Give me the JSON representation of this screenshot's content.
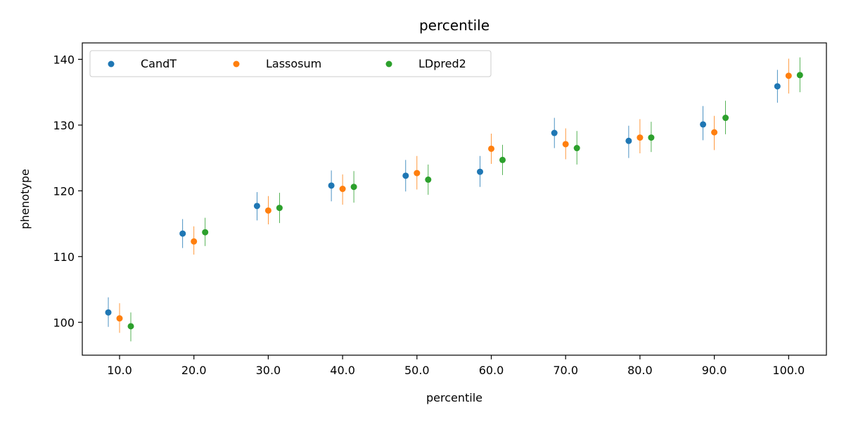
{
  "chart_data": {
    "type": "scatter",
    "title": "percentile",
    "xlabel": "percentile",
    "ylabel": "phenotype",
    "categories": [
      "10.0",
      "20.0",
      "30.0",
      "40.0",
      "50.0",
      "60.0",
      "70.0",
      "80.0",
      "90.0",
      "100.0"
    ],
    "ylim": [
      95,
      142.5
    ],
    "yticks": [
      100,
      110,
      120,
      130,
      140
    ],
    "grid": false,
    "legend": {
      "placement": "top-left",
      "columns": 3
    },
    "series": [
      {
        "name": "CandT",
        "color": "#1f77b4",
        "values": [
          101.5,
          113.5,
          117.7,
          120.8,
          122.3,
          122.9,
          128.8,
          127.6,
          130.1,
          135.9
        ],
        "err_low": [
          99.3,
          111.3,
          115.5,
          118.4,
          119.9,
          120.6,
          126.5,
          125.0,
          127.7,
          133.4
        ],
        "err_high": [
          103.8,
          115.7,
          119.8,
          123.1,
          124.7,
          125.3,
          131.1,
          129.9,
          132.9,
          138.4
        ]
      },
      {
        "name": "Lassosum",
        "color": "#ff7f0e",
        "values": [
          100.6,
          112.3,
          117.0,
          120.3,
          122.7,
          126.4,
          127.1,
          128.1,
          128.9,
          137.5
        ],
        "err_low": [
          98.4,
          110.3,
          114.9,
          117.9,
          120.2,
          124.1,
          124.8,
          125.7,
          126.2,
          134.8
        ],
        "err_high": [
          102.9,
          114.6,
          119.2,
          122.5,
          125.3,
          128.7,
          129.5,
          130.9,
          131.4,
          140.1
        ]
      },
      {
        "name": "LDpred2",
        "color": "#2ca02c",
        "values": [
          99.4,
          113.7,
          117.4,
          120.6,
          121.7,
          124.7,
          126.5,
          128.1,
          131.1,
          137.6
        ],
        "err_low": [
          97.1,
          111.6,
          115.1,
          118.2,
          119.4,
          122.4,
          124.0,
          125.9,
          128.6,
          135.0
        ],
        "err_high": [
          101.5,
          115.9,
          119.7,
          123.0,
          124.0,
          127.0,
          129.1,
          130.5,
          133.7,
          140.3
        ]
      }
    ]
  }
}
